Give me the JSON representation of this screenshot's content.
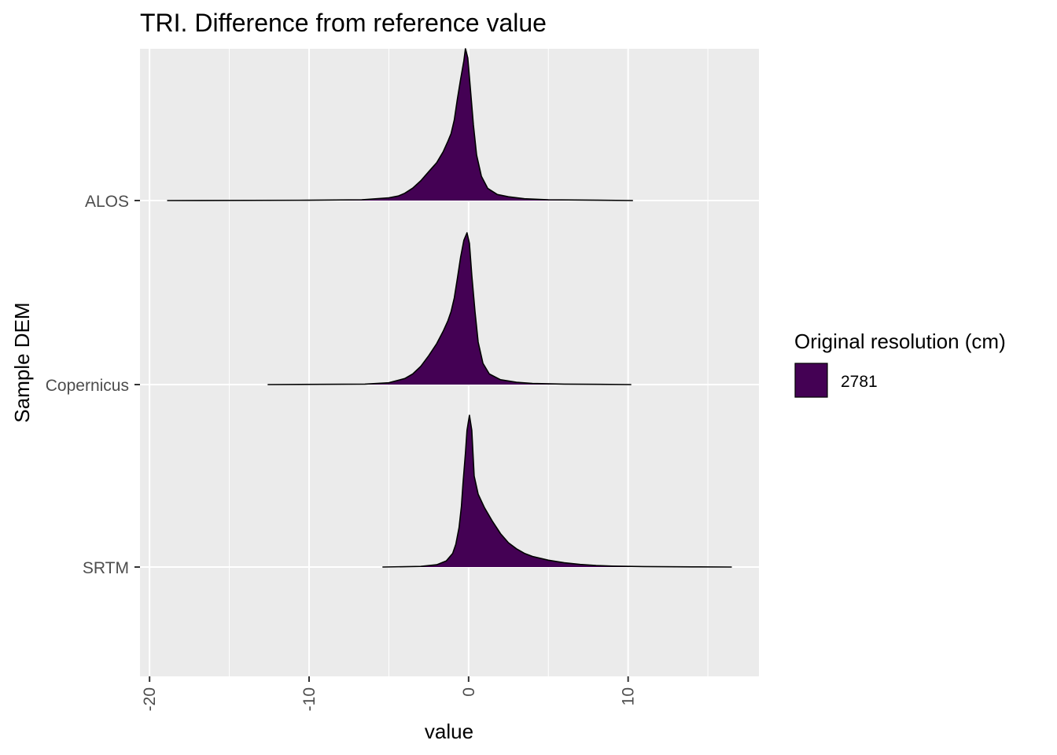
{
  "chart_data": {
    "type": "ridgeline-density",
    "title": "TRI. Difference from reference value",
    "xlabel": "value",
    "ylabel": "Sample DEM",
    "xlim": [
      -20.6,
      18.2
    ],
    "x_ticks": [
      -20,
      -10,
      0,
      10
    ],
    "x_tick_labels": [
      "-20",
      "-10",
      "0",
      "10"
    ],
    "categories": [
      "ALOS",
      "Copernicus",
      "SRTM"
    ],
    "grid": true,
    "legend": {
      "title": "Original resolution (cm)",
      "position": "right",
      "entries": [
        {
          "label": "2781",
          "color": "#440154"
        }
      ]
    },
    "fill_color": "#440154",
    "background_color": "#ebebeb",
    "series": [
      {
        "name": "ALOS",
        "range": [
          -18.9,
          10.3
        ],
        "peak_x": -0.2,
        "density": [
          [
            -18.9,
            0.0
          ],
          [
            -10,
            0.002
          ],
          [
            -6.7,
            0.005
          ],
          [
            -5,
            0.018
          ],
          [
            -4.4,
            0.03
          ],
          [
            -4,
            0.048
          ],
          [
            -3.5,
            0.082
          ],
          [
            -3,
            0.13
          ],
          [
            -2.5,
            0.19
          ],
          [
            -2,
            0.25
          ],
          [
            -1.6,
            0.32
          ],
          [
            -1.3,
            0.39
          ],
          [
            -1.1,
            0.44
          ],
          [
            -0.9,
            0.53
          ],
          [
            -0.7,
            0.67
          ],
          [
            -0.5,
            0.8
          ],
          [
            -0.3,
            0.92
          ],
          [
            -0.2,
            1.0
          ],
          [
            -0.05,
            0.94
          ],
          [
            0.1,
            0.75
          ],
          [
            0.3,
            0.5
          ],
          [
            0.5,
            0.3
          ],
          [
            0.8,
            0.16
          ],
          [
            1.2,
            0.08
          ],
          [
            1.8,
            0.04
          ],
          [
            2.5,
            0.025
          ],
          [
            3.5,
            0.012
          ],
          [
            5,
            0.005
          ],
          [
            7.5,
            0.003
          ],
          [
            10.3,
            0.0
          ]
        ]
      },
      {
        "name": "Copernicus",
        "range": [
          -12.6,
          10.2
        ],
        "peak_x": -0.1,
        "density": [
          [
            -12.6,
            0.0
          ],
          [
            -6.5,
            0.003
          ],
          [
            -5,
            0.012
          ],
          [
            -4,
            0.04
          ],
          [
            -3.5,
            0.07
          ],
          [
            -3,
            0.12
          ],
          [
            -2.5,
            0.19
          ],
          [
            -2,
            0.27
          ],
          [
            -1.6,
            0.35
          ],
          [
            -1.3,
            0.42
          ],
          [
            -1.1,
            0.48
          ],
          [
            -0.9,
            0.57
          ],
          [
            -0.7,
            0.7
          ],
          [
            -0.5,
            0.84
          ],
          [
            -0.3,
            0.95
          ],
          [
            -0.1,
            1.0
          ],
          [
            0.05,
            0.93
          ],
          [
            0.2,
            0.72
          ],
          [
            0.4,
            0.48
          ],
          [
            0.6,
            0.28
          ],
          [
            0.9,
            0.14
          ],
          [
            1.3,
            0.07
          ],
          [
            2,
            0.032
          ],
          [
            3,
            0.015
          ],
          [
            4,
            0.007
          ],
          [
            6,
            0.003
          ],
          [
            10.2,
            0.0
          ]
        ]
      },
      {
        "name": "SRTM",
        "range": [
          -5.4,
          16.5
        ],
        "peak_x": 0.05,
        "density": [
          [
            -5.4,
            0.0
          ],
          [
            -3,
            0.004
          ],
          [
            -2,
            0.015
          ],
          [
            -1.4,
            0.04
          ],
          [
            -1,
            0.09
          ],
          [
            -0.8,
            0.15
          ],
          [
            -0.6,
            0.26
          ],
          [
            -0.45,
            0.4
          ],
          [
            -0.35,
            0.55
          ],
          [
            -0.2,
            0.75
          ],
          [
            -0.1,
            0.9
          ],
          [
            0.05,
            1.0
          ],
          [
            0.2,
            0.9
          ],
          [
            0.35,
            0.6
          ],
          [
            0.6,
            0.48
          ],
          [
            1,
            0.39
          ],
          [
            1.5,
            0.3
          ],
          [
            2,
            0.22
          ],
          [
            2.5,
            0.16
          ],
          [
            3,
            0.12
          ],
          [
            3.5,
            0.09
          ],
          [
            4,
            0.07
          ],
          [
            5,
            0.045
          ],
          [
            6,
            0.028
          ],
          [
            7,
            0.017
          ],
          [
            8,
            0.01
          ],
          [
            9,
            0.006
          ],
          [
            11,
            0.003
          ],
          [
            14,
            0.001
          ],
          [
            16.5,
            0.0
          ]
        ]
      }
    ]
  }
}
